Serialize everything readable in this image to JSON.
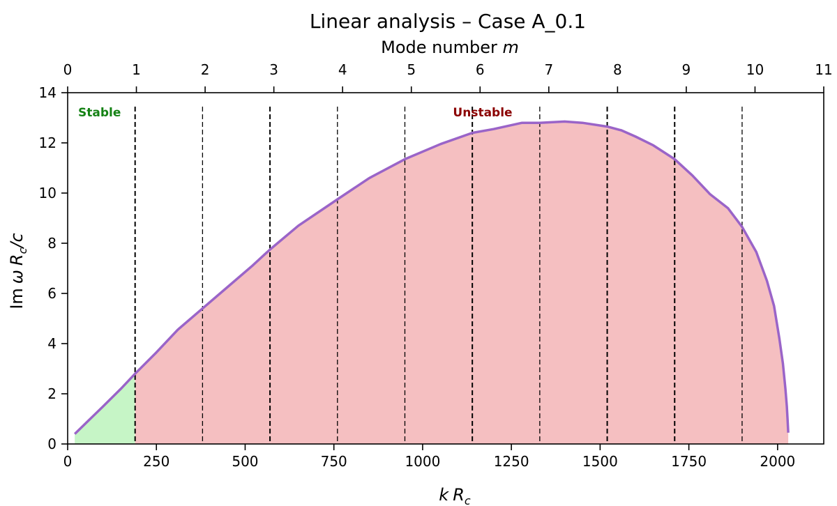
{
  "chart_data": {
    "type": "area",
    "title": "Linear analysis – Case A_0.1",
    "xlabel": "k R_c",
    "ylabel": "Im ω R_c/c",
    "top_xlabel": "Mode number m",
    "xlim": [
      0,
      2130
    ],
    "ylim": [
      0,
      14
    ],
    "top_xlim": [
      0,
      11
    ],
    "x_ticks": [
      0,
      250,
      500,
      750,
      1000,
      1250,
      1500,
      1750,
      2000
    ],
    "y_ticks": [
      0,
      2,
      4,
      6,
      8,
      10,
      12,
      14
    ],
    "top_ticks": [
      0,
      1,
      2,
      3,
      4,
      5,
      6,
      7,
      8,
      9,
      10,
      11
    ],
    "mode_lines_k": [
      190,
      380,
      570,
      760,
      950,
      1140,
      1330,
      1520,
      1710,
      1900
    ],
    "stable_boundary_k": 190,
    "series": [
      {
        "x": [
          20,
          60,
          100,
          150,
          190,
          250,
          310,
          380,
          450,
          520,
          570,
          650,
          760,
          850,
          950,
          1050,
          1140,
          1200,
          1280,
          1330,
          1400,
          1450,
          1520,
          1560,
          1600,
          1650,
          1710,
          1760,
          1810,
          1860,
          1900,
          1940,
          1970,
          1990,
          2005,
          2015,
          2022,
          2026,
          2028,
          2030
        ],
        "y": [
          0.4,
          0.95,
          1.5,
          2.2,
          2.8,
          3.65,
          4.55,
          5.4,
          6.25,
          7.1,
          7.75,
          8.7,
          9.75,
          10.6,
          11.35,
          11.95,
          12.4,
          12.55,
          12.8,
          12.8,
          12.85,
          12.8,
          12.65,
          12.5,
          12.25,
          11.9,
          11.35,
          10.7,
          9.95,
          9.4,
          8.65,
          7.65,
          6.5,
          5.5,
          4.2,
          3.2,
          2.2,
          1.5,
          1.0,
          0.45
        ]
      }
    ],
    "annotations": [
      {
        "text": "Stable",
        "color": "#158215"
      },
      {
        "text": "Unstable",
        "color": "#8b0000"
      }
    ],
    "colors": {
      "curve": "#9a64c8",
      "stable_fill": "#c6f5c6",
      "unstable_fill": "#f5bfc1",
      "mode_line": "#000000"
    }
  }
}
